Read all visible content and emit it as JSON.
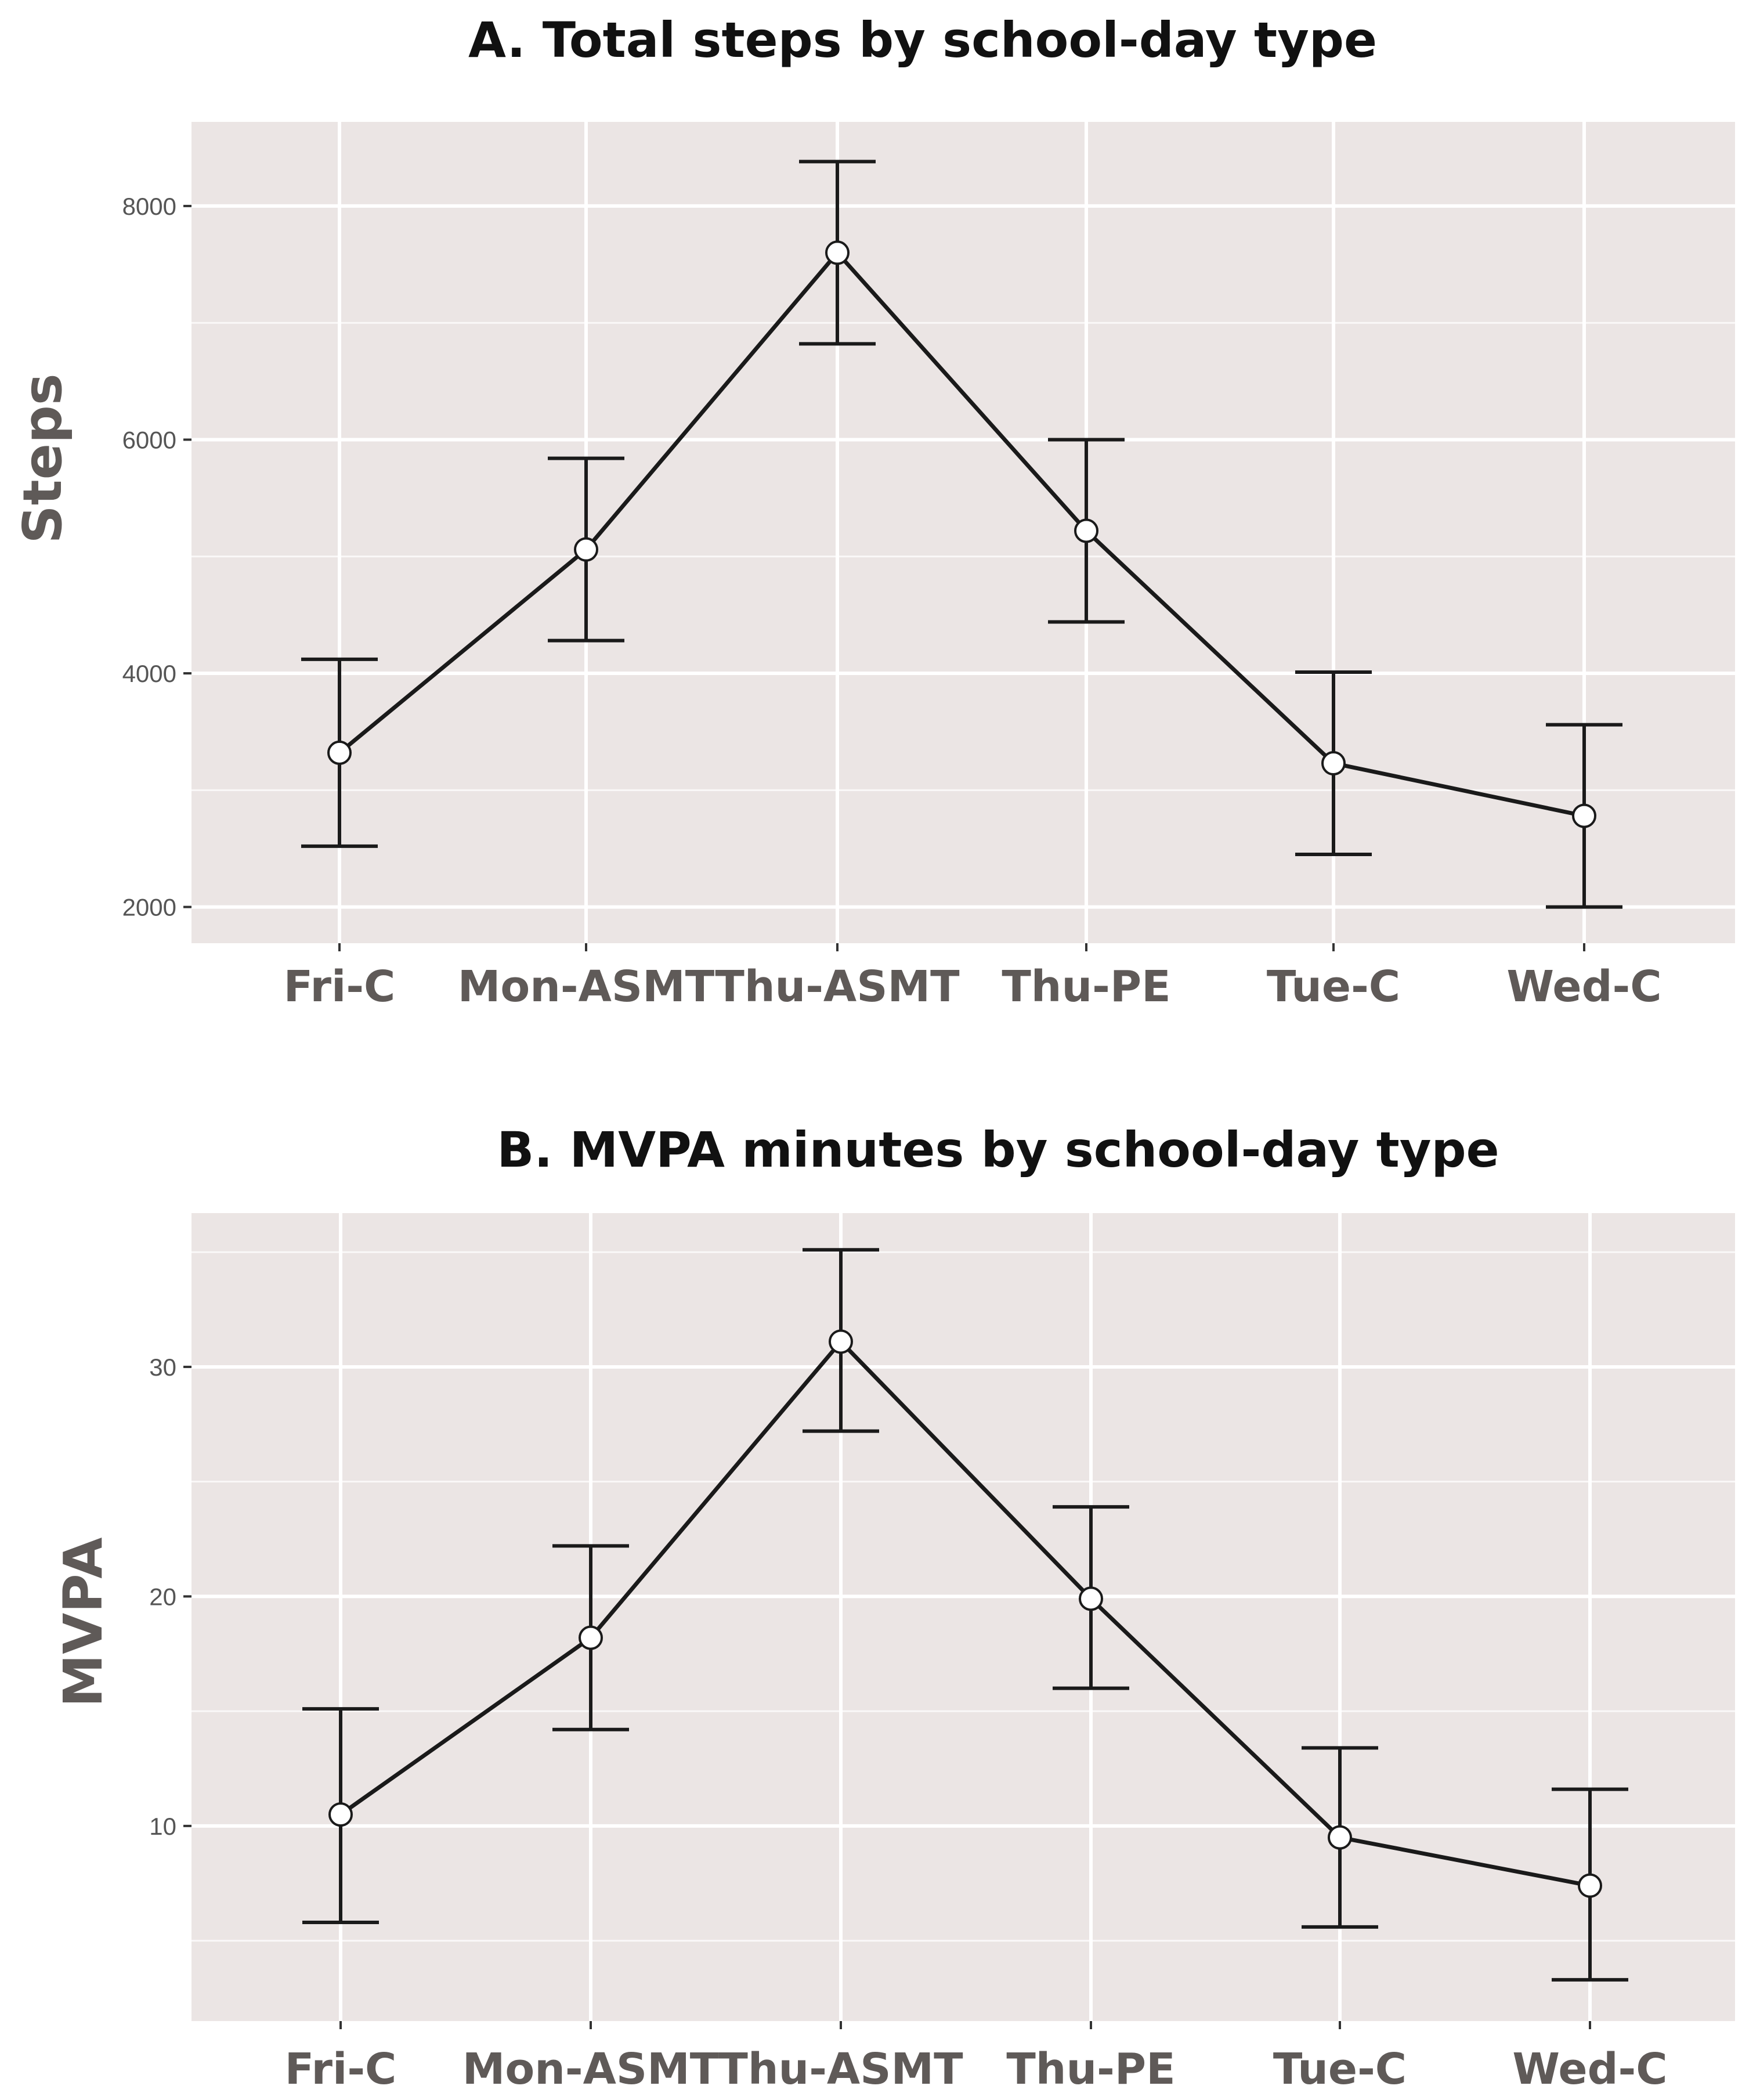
{
  "chart_data": [
    {
      "type": "line",
      "title": "A. Total steps by school-day type",
      "xlabel": "",
      "ylabel": "Steps",
      "categories": [
        "Fri-C",
        "Mon-ASMT",
        "Thu-ASMT",
        "Thu-PE",
        "Tue-C",
        "Wed-C"
      ],
      "series": [
        {
          "values": [
            3320,
            5060,
            7600,
            5220,
            3230,
            2780
          ],
          "lower": [
            2520,
            4280,
            6820,
            4440,
            2450,
            2000
          ],
          "upper": [
            4120,
            5840,
            8380,
            6000,
            4010,
            3560
          ]
        }
      ],
      "yticks": [
        2000,
        4000,
        6000,
        8000
      ],
      "ylim": [
        1690,
        8720
      ],
      "grid": true,
      "line_color": "#1a1a1a",
      "marker_fill": "#ffffff",
      "panel_color": "#ebe5e4"
    },
    {
      "type": "line",
      "title": "B.  MVPA minutes by school-day type",
      "xlabel": "",
      "ylabel": "MVPA",
      "categories": [
        "Fri-C",
        "Mon-ASMT",
        "Thu-ASMT",
        "Thu-PE",
        "Tue-C",
        "Wed-C"
      ],
      "series": [
        {
          "values": [
            10.5,
            18.2,
            31.1,
            19.9,
            9.5,
            7.4
          ],
          "lower": [
            5.8,
            14.2,
            27.2,
            16.0,
            5.6,
            3.3
          ],
          "upper": [
            15.1,
            22.2,
            35.1,
            23.9,
            13.4,
            11.6
          ]
        }
      ],
      "yticks": [
        10,
        20,
        30
      ],
      "ylim": [
        1.5,
        36.7
      ],
      "grid": true,
      "line_color": "#1a1a1a",
      "marker_fill": "#ffffff",
      "panel_color": "#ebe5e4"
    }
  ]
}
